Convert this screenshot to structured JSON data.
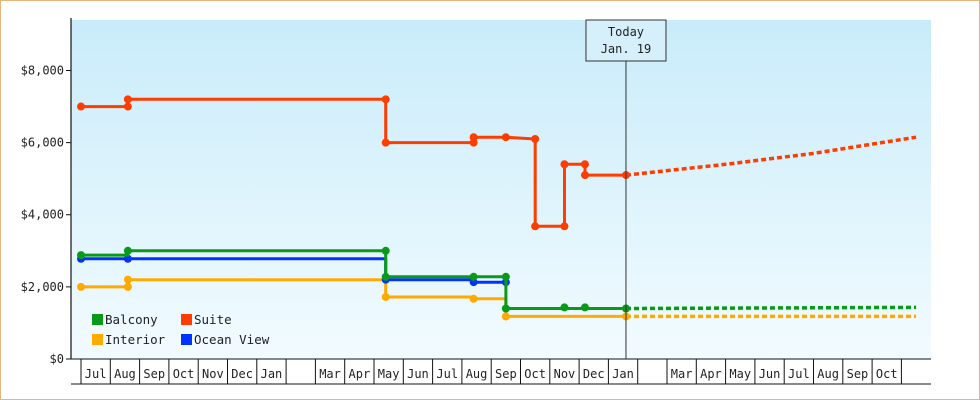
{
  "chart_data": {
    "type": "line",
    "ylim": [
      0,
      9400
    ],
    "y_ticks": [
      {
        "value": 0,
        "label": "$0"
      },
      {
        "value": 2000,
        "label": "$2,000"
      },
      {
        "value": 4000,
        "label": "$4,000"
      },
      {
        "value": 6000,
        "label": "$6,000"
      },
      {
        "value": 8000,
        "label": "$8,000"
      }
    ],
    "x_tick_labels": [
      "Jul",
      "Aug",
      "Sep",
      "Oct",
      "Nov",
      "Dec",
      "Jan",
      "",
      "Mar",
      "Apr",
      "May",
      "Jun",
      "Jul",
      "Aug",
      "Sep",
      "Oct",
      "Nov",
      "Dec",
      "Jan",
      "",
      "Mar",
      "Apr",
      "May",
      "Jun",
      "Jul",
      "Aug",
      "Sep",
      "Oct"
    ],
    "xlim_months": [
      0,
      28.5
    ],
    "grid": false,
    "legend_position": "bottom-left",
    "today": {
      "line1": "Today",
      "line2": "Jan. 19",
      "x": 18.6
    },
    "series": [
      {
        "name": "Suite",
        "color": "#ff3d00",
        "points": [
          [
            0,
            7000
          ],
          [
            1.6,
            7000
          ],
          [
            1.6,
            7200
          ],
          [
            10.4,
            7200
          ],
          [
            10.4,
            6000
          ],
          [
            13.4,
            6000
          ],
          [
            13.4,
            6150
          ],
          [
            14.5,
            6150
          ],
          [
            15.5,
            6100
          ],
          [
            15.5,
            3680
          ],
          [
            16.5,
            3680
          ],
          [
            16.5,
            5400
          ],
          [
            17.2,
            5400
          ],
          [
            17.2,
            5100
          ],
          [
            18.6,
            5100
          ]
        ],
        "markers": [
          [
            0,
            7000
          ],
          [
            1.6,
            7000
          ],
          [
            1.6,
            7200
          ],
          [
            10.4,
            7200
          ],
          [
            10.4,
            6000
          ],
          [
            13.4,
            6000
          ],
          [
            13.4,
            6150
          ],
          [
            14.5,
            6150
          ],
          [
            15.5,
            6100
          ],
          [
            15.5,
            3680
          ],
          [
            16.5,
            3680
          ],
          [
            16.5,
            5400
          ],
          [
            17.2,
            5400
          ],
          [
            17.2,
            5100
          ],
          [
            18.6,
            5100
          ]
        ],
        "forecast": [
          [
            18.6,
            5100
          ],
          [
            22,
            5400
          ],
          [
            25,
            5700
          ],
          [
            28.5,
            6150
          ]
        ]
      },
      {
        "name": "Balcony",
        "color": "#0a9a1a",
        "points": [
          [
            0,
            2880
          ],
          [
            1.6,
            2880
          ],
          [
            1.6,
            3000
          ],
          [
            10.4,
            3000
          ],
          [
            10.4,
            2280
          ],
          [
            14.5,
            2280
          ],
          [
            14.5,
            1400
          ],
          [
            18.6,
            1400
          ]
        ],
        "markers": [
          [
            0,
            2880
          ],
          [
            1.6,
            3000
          ],
          [
            10.4,
            3000
          ],
          [
            10.4,
            2280
          ],
          [
            13.4,
            2280
          ],
          [
            14.5,
            2280
          ],
          [
            14.5,
            1400
          ],
          [
            16.5,
            1430
          ],
          [
            17.2,
            1430
          ],
          [
            18.6,
            1400
          ]
        ],
        "forecast": [
          [
            18.6,
            1400
          ],
          [
            28.5,
            1430
          ]
        ]
      },
      {
        "name": "Ocean View",
        "color": "#0033ff",
        "points": [
          [
            0,
            2780
          ],
          [
            1.6,
            2780
          ],
          [
            10.4,
            2780
          ],
          [
            10.4,
            2200
          ],
          [
            13.4,
            2200
          ],
          [
            13.4,
            2130
          ],
          [
            14.5,
            2130
          ]
        ],
        "markers": [
          [
            0,
            2780
          ],
          [
            1.6,
            2780
          ],
          [
            10.4,
            2200
          ],
          [
            13.4,
            2130
          ],
          [
            14.5,
            2130
          ]
        ],
        "forecast": []
      },
      {
        "name": "Interior",
        "color": "#ffaa00",
        "points": [
          [
            0,
            2000
          ],
          [
            1.6,
            2000
          ],
          [
            1.6,
            2200
          ],
          [
            10.4,
            2200
          ],
          [
            10.4,
            1720
          ],
          [
            13.4,
            1720
          ],
          [
            13.4,
            1670
          ],
          [
            14.5,
            1670
          ],
          [
            14.5,
            1180
          ],
          [
            18.6,
            1180
          ]
        ],
        "markers": [
          [
            0,
            2000
          ],
          [
            1.6,
            2000
          ],
          [
            1.6,
            2200
          ],
          [
            10.4,
            1720
          ],
          [
            13.4,
            1670
          ],
          [
            14.5,
            1180
          ],
          [
            18.6,
            1180
          ]
        ],
        "forecast": [
          [
            18.6,
            1180
          ],
          [
            28.5,
            1180
          ]
        ]
      }
    ],
    "legend": [
      {
        "name": "Balcony",
        "color": "#0a9a1a"
      },
      {
        "name": "Suite",
        "color": "#ff3d00"
      },
      {
        "name": "Interior",
        "color": "#ffaa00"
      },
      {
        "name": "Ocean View",
        "color": "#0033ff"
      }
    ]
  }
}
